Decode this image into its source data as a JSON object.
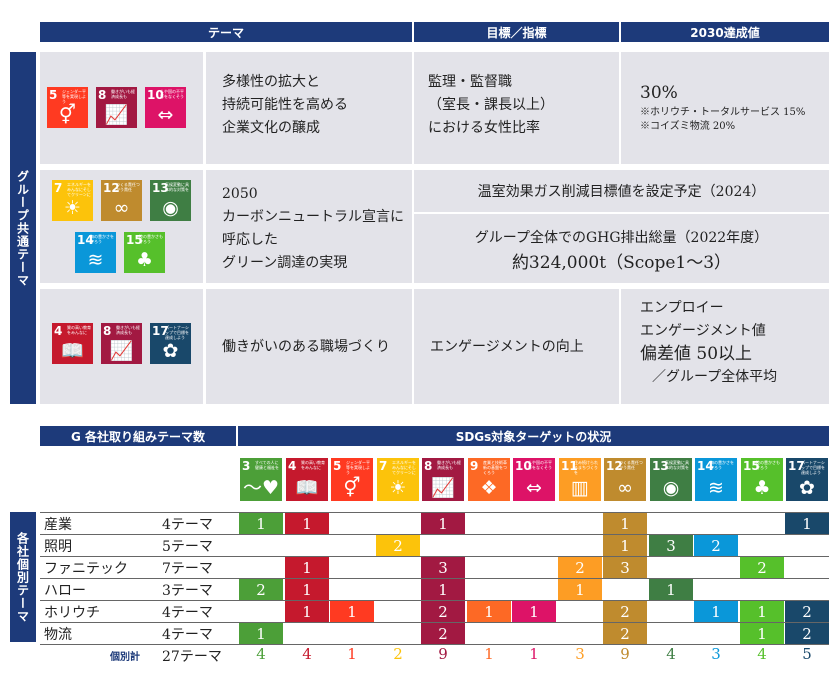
{
  "top_table": {
    "headers": {
      "theme": "テーマ",
      "target": "目標／指標",
      "value": "2030達成値"
    },
    "side_label": "グループ共通テーマ",
    "rows": [
      {
        "goals": [
          5,
          8,
          10
        ],
        "theme_lines": [
          "多様性の拡大と",
          "持続可能性を高める",
          "企業文化の醸成"
        ],
        "target_lines": [
          "監理・監督職",
          "（室長・課長以上）",
          "における女性比率"
        ],
        "value_main": "30%",
        "value_notes": [
          "※ホリウチ・トータルサービス 15%",
          "※コイズミ物流 20%"
        ]
      },
      {
        "goals": [
          7,
          12,
          13,
          14,
          15
        ],
        "theme_lines": [
          "2050",
          "カーボンニュートラル宣言に",
          "呼応した",
          "グリーン調達の実現"
        ],
        "merged_top": "温室効果ガス削減目標値を設定予定（2024）",
        "merged_bottom_1": "グループ全体でのGHG排出総量（2022年度）",
        "merged_bottom_2": "約324,000t（Scope1〜3）"
      },
      {
        "goals": [
          4,
          8,
          17
        ],
        "theme_lines": [
          "働きがいのある職場づくり"
        ],
        "target_lines": [
          "エンゲージメントの向上"
        ],
        "value_lines": [
          "エンプロイー",
          "エンゲージメント値",
          "偏差値 50以上",
          "／グループ全体平均"
        ]
      }
    ]
  },
  "bottom_table": {
    "header_left": "G 各社取り組みテーマ数",
    "header_right": "SDGs対象ターゲットの状況",
    "side_label": "各社個別テーマ",
    "goals": [
      3,
      4,
      5,
      7,
      8,
      9,
      10,
      11,
      12,
      13,
      14,
      15,
      17
    ],
    "companies": [
      {
        "name": "産業",
        "count": "4テーマ",
        "values": [
          "1",
          "1",
          "",
          "",
          "1",
          "",
          "",
          "",
          "1",
          "",
          "",
          "",
          "1"
        ]
      },
      {
        "name": "照明",
        "count": "5テーマ",
        "values": [
          "",
          "",
          "",
          "2",
          "",
          "",
          "",
          "",
          "1",
          "3",
          "2",
          "",
          ""
        ]
      },
      {
        "name": "ファニテック",
        "count": "7テーマ",
        "values": [
          "",
          "1",
          "",
          "",
          "3",
          "",
          "",
          "2",
          "3",
          "",
          "",
          "2",
          ""
        ]
      },
      {
        "name": "ハロー",
        "count": "3テーマ",
        "values": [
          "2",
          "1",
          "",
          "",
          "1",
          "",
          "",
          "1",
          "",
          "1",
          "",
          "",
          ""
        ]
      },
      {
        "name": "ホリウチ",
        "count": "4テーマ",
        "values": [
          "",
          "1",
          "1",
          "",
          "2",
          "1",
          "1",
          "",
          "2",
          "",
          "1",
          "1",
          "2"
        ]
      },
      {
        "name": "物流",
        "count": "4テーマ",
        "values": [
          "1",
          "",
          "",
          "",
          "2",
          "",
          "",
          "",
          "2",
          "",
          "",
          "1",
          "2"
        ]
      }
    ],
    "total_label": "個別計",
    "total_count": "27テーマ",
    "totals": [
      "4",
      "4",
      "1",
      "2",
      "9",
      "1",
      "1",
      "3",
      "9",
      "4",
      "3",
      "4",
      "5"
    ]
  },
  "sdg_goals": {
    "3": {
      "color": "#4c9f38",
      "title": "すべての人に健康と福祉を",
      "icon": "heartbeat-icon",
      "glyph": "〜♥"
    },
    "4": {
      "color": "#c5192d",
      "title": "質の高い教育をみんなに",
      "icon": "book-icon",
      "glyph": "📖"
    },
    "5": {
      "color": "#ff3a21",
      "title": "ジェンダー平等を実現しよう",
      "icon": "gender-icon",
      "glyph": "⚥"
    },
    "7": {
      "color": "#fcc30b",
      "title": "エネルギーをみんなにそしてクリーンに",
      "icon": "sun-icon",
      "glyph": "☀"
    },
    "8": {
      "color": "#a21942",
      "title": "働きがいも経済成長も",
      "icon": "growth-chart-icon",
      "glyph": "📈"
    },
    "9": {
      "color": "#fd6925",
      "title": "産業と技術革新の基盤をつくろう",
      "icon": "cubes-icon",
      "glyph": "❖"
    },
    "10": {
      "color": "#dd1367",
      "title": "人や国の不平等をなくそう",
      "icon": "equality-icon",
      "glyph": "⇔"
    },
    "11": {
      "color": "#fd9d24",
      "title": "住み続けられるまちづくりを",
      "icon": "city-icon",
      "glyph": "▥"
    },
    "12": {
      "color": "#bf8b2e",
      "title": "つくる責任つかう責任",
      "icon": "infinity-icon",
      "glyph": "∞"
    },
    "13": {
      "color": "#3f7e44",
      "title": "気候変動に具体的な対策を",
      "icon": "eye-globe-icon",
      "glyph": "◉"
    },
    "14": {
      "color": "#0a97d9",
      "title": "海の豊かさを守ろう",
      "icon": "fish-icon",
      "glyph": "≋"
    },
    "15": {
      "color": "#56c02b",
      "title": "陸の豊かさも守ろう",
      "icon": "tree-icon",
      "glyph": "♣"
    },
    "17": {
      "color": "#19486a",
      "title": "パートナーシップで目標を達成しよう",
      "icon": "partnership-icon",
      "glyph": "✿"
    }
  }
}
